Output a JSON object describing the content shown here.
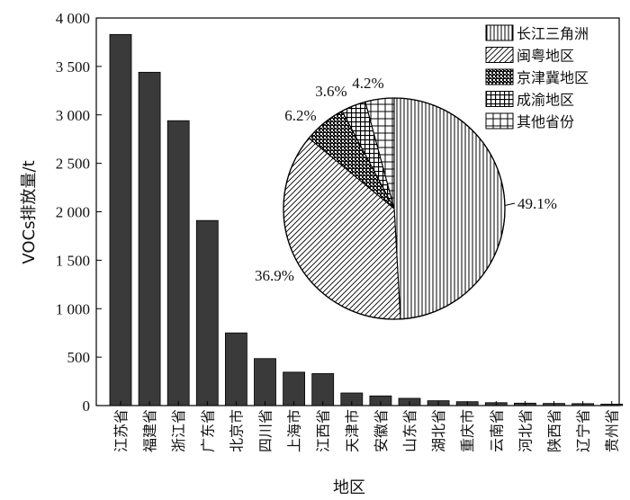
{
  "chart_data": [
    {
      "type": "bar",
      "xlabel": "地区",
      "ylabel": "VOCs排放量/t",
      "ylim": [
        0,
        4000
      ],
      "yticks": [
        "4 000",
        "3 500",
        "3 000",
        "2 500",
        "2 000",
        "1 500",
        "1 000",
        "500",
        "0"
      ],
      "ytick_values": [
        4000,
        3500,
        3000,
        2500,
        2000,
        1500,
        1000,
        500,
        0
      ],
      "categories": [
        "江苏省",
        "福建省",
        "浙江省",
        "广东省",
        "北京市",
        "四川省",
        "上海市",
        "江西省",
        "天津市",
        "安徽省",
        "山东省",
        "湖北省",
        "重庆市",
        "云南省",
        "河北省",
        "陕西省",
        "辽宁省",
        "贵州省"
      ],
      "values": [
        3830,
        3440,
        2940,
        1910,
        750,
        485,
        345,
        330,
        130,
        100,
        75,
        50,
        40,
        30,
        25,
        22,
        20,
        15
      ],
      "bar_color": "#3a3a3a",
      "grid": false
    },
    {
      "type": "pie",
      "labels": [
        "长江三角洲",
        "闽粤地区",
        "京津冀地区",
        "成渝地区",
        "其他省份"
      ],
      "values": [
        49.1,
        36.9,
        6.2,
        3.6,
        4.2
      ],
      "value_labels": [
        "49.1%",
        "36.9%",
        "6.2%",
        "3.6%",
        "4.2%"
      ],
      "patterns": [
        "vertical-lines",
        "diagonal-lines",
        "dense-checker",
        "grid-hatch",
        "plus-hatch"
      ],
      "legend_position": "top-right"
    }
  ]
}
